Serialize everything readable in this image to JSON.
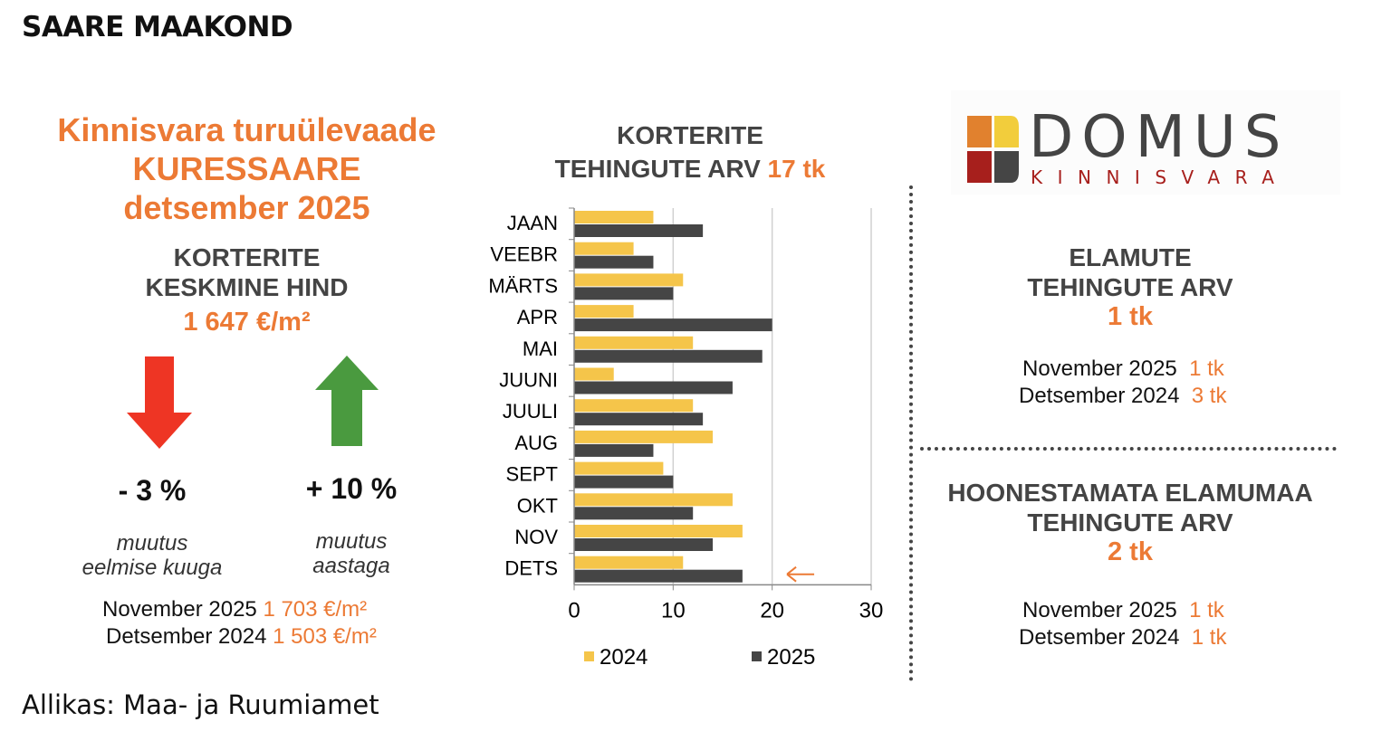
{
  "page_title": "SAARE MAAKOND",
  "source": "Allikas: Maa- ja Ruumiamet",
  "left": {
    "heading": [
      "Kinnisvara turuülevaade",
      "KURESSAARE",
      "detsember 2025"
    ],
    "subtitle": [
      "KORTERITE",
      "KESKMINE HIND"
    ],
    "price": "1 647 €/m²",
    "change_month": {
      "value": "- 3 %",
      "label": [
        "muutus",
        "eelmise kuuga"
      ],
      "icon": "arrow-down-icon",
      "color": "#ee3524"
    },
    "change_year": {
      "value": "+ 10 %",
      "label": [
        "muutus",
        "aastaga"
      ],
      "icon": "arrow-up-icon",
      "color": "#4a9a3f"
    },
    "comparisons": [
      {
        "label": "November 2025",
        "value": "1 703 €/m²"
      },
      {
        "label": "Detsember 2024",
        "value": "1 503 €/m²"
      }
    ]
  },
  "chart_title": {
    "line1": "KORTERITE",
    "line2": "TEHINGUTE ARV",
    "highlight": "17 tk"
  },
  "logo": {
    "name": "DOMUS",
    "sub": "KINNISVARA"
  },
  "elamute": {
    "title": [
      "ELAMUTE",
      "TEHINGUTE ARV"
    ],
    "value": "1 tk",
    "comparisons": [
      {
        "label": "November 2025",
        "value": "1 tk"
      },
      {
        "label": "Detsember 2024",
        "value": "3 tk"
      }
    ]
  },
  "maa": {
    "title": [
      "HOONESTAMATA ELAMUMAA",
      "TEHINGUTE ARV"
    ],
    "value": "2 tk",
    "comparisons": [
      {
        "label": "November 2025",
        "value": "1 tk"
      },
      {
        "label": "Detsember 2024",
        "value": "1 tk"
      }
    ]
  },
  "colors": {
    "accent": "#ec7a35",
    "series_2024": "#f5c54a",
    "series_2025": "#454545"
  },
  "chart_data": {
    "type": "bar",
    "orientation": "horizontal",
    "categories": [
      "JAAN",
      "VEEBR",
      "MÄRTS",
      "APR",
      "MAI",
      "JUUNI",
      "JUULI",
      "AUG",
      "SEPT",
      "OKT",
      "NOV",
      "DETS"
    ],
    "series": [
      {
        "name": "2024",
        "values": [
          8,
          6,
          11,
          6,
          12,
          4,
          12,
          14,
          9,
          16,
          17,
          11
        ]
      },
      {
        "name": "2025",
        "values": [
          13,
          8,
          10,
          20,
          19,
          16,
          13,
          8,
          10,
          12,
          14,
          17
        ]
      }
    ],
    "xlim": [
      0,
      30
    ],
    "xticks": [
      0,
      10,
      20,
      30
    ],
    "grid": true,
    "legend": "bottom",
    "annotation": "arrow pointing at DETS 2025 bar"
  }
}
